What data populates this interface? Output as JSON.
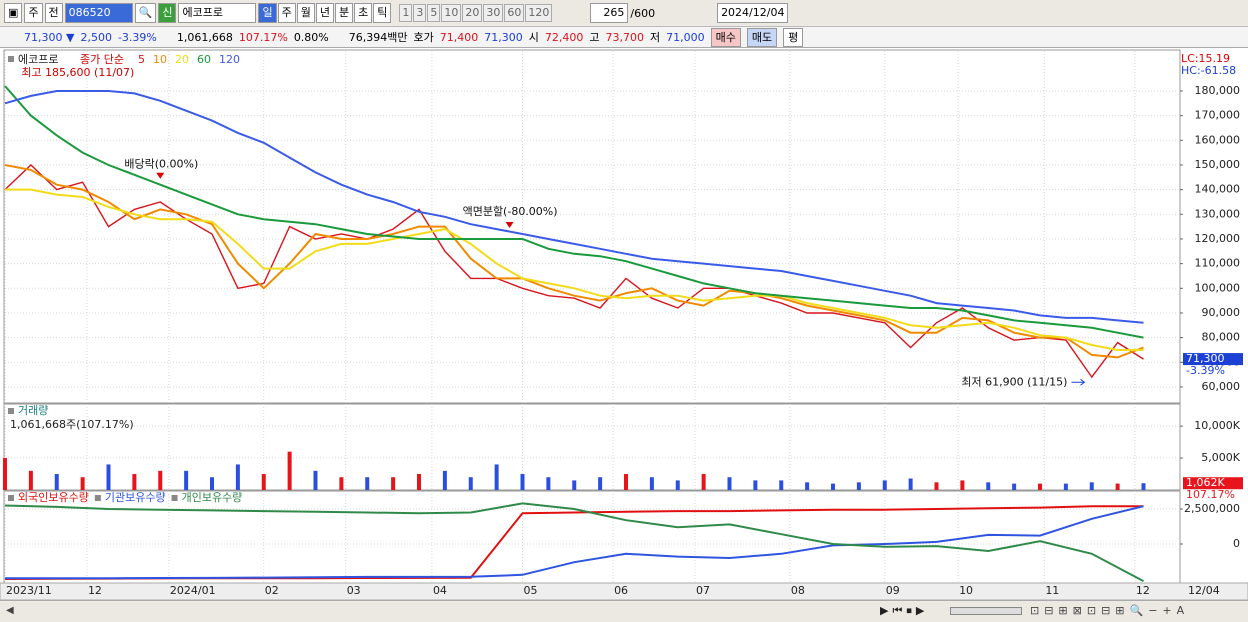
{
  "toolbar": {
    "market": "주",
    "kind": "전",
    "code": "086520",
    "name": "에코프로",
    "periods": [
      "일",
      "주",
      "월",
      "년",
      "분",
      "초",
      "틱"
    ],
    "intervals": [
      "1",
      "3",
      "5",
      "10",
      "20",
      "30",
      "60",
      "120"
    ],
    "count": "265",
    "max": "/600",
    "date": "2024/12/04"
  },
  "info": {
    "fields": [
      "71,300 ▼",
      "2,500",
      "-3.39%",
      "1,061,668",
      "107.17%",
      "0.80%",
      "76,394백만",
      "호가",
      "71,400",
      "71,300",
      "시",
      "72,400",
      "고",
      "73,700",
      "저",
      "71,000"
    ],
    "buttons": [
      "매수",
      "매도",
      "평"
    ]
  },
  "chart_data": [
    {
      "type": "line",
      "stock": "에코프로",
      "legend_title": "종가 단순",
      "lc": "LC:15.19",
      "hc": "HC:-61.58",
      "last_label": "71,300",
      "last_change": "-3.39%",
      "x_end_label": "12/04",
      "xlim": [
        0,
        272
      ],
      "ylim": [
        53900,
        195800
      ],
      "xticks": [
        {
          "value": 0,
          "label": "2023/11"
        },
        {
          "value": 19,
          "label": "12"
        },
        {
          "value": 38,
          "label": "2024/01"
        },
        {
          "value": 60,
          "label": "02"
        },
        {
          "value": 79,
          "label": "03"
        },
        {
          "value": 99,
          "label": "04"
        },
        {
          "value": 120,
          "label": "05"
        },
        {
          "value": 141,
          "label": "06"
        },
        {
          "value": 160,
          "label": "07"
        },
        {
          "value": 182,
          "label": "08"
        },
        {
          "value": 204,
          "label": "09"
        },
        {
          "value": 221,
          "label": "10"
        },
        {
          "value": 241,
          "label": "11"
        },
        {
          "value": 262,
          "label": "12"
        }
      ],
      "yticks": [
        {
          "value": 60000,
          "label": "60,000"
        },
        {
          "value": 70000,
          "label": "70,000"
        },
        {
          "value": 80000,
          "label": "80,000"
        },
        {
          "value": 90000,
          "label": "90,000"
        },
        {
          "value": 100000,
          "label": "100,000"
        },
        {
          "value": 110000,
          "label": "110,000"
        },
        {
          "value": 120000,
          "label": "120,000"
        },
        {
          "value": 130000,
          "label": "130,000"
        },
        {
          "value": 140000,
          "label": "140,000"
        },
        {
          "value": 150000,
          "label": "150,000"
        },
        {
          "value": 160000,
          "label": "160,000"
        },
        {
          "value": 170000,
          "label": "170,000"
        },
        {
          "value": 180000,
          "label": "180,000"
        }
      ],
      "grid": true,
      "x": [
        0,
        6,
        12,
        18,
        24,
        30,
        36,
        42,
        48,
        54,
        60,
        66,
        72,
        78,
        84,
        90,
        96,
        102,
        108,
        114,
        120,
        126,
        132,
        138,
        144,
        150,
        156,
        162,
        168,
        174,
        180,
        186,
        192,
        198,
        204,
        210,
        216,
        222,
        228,
        234,
        240,
        246,
        252,
        258,
        264
      ],
      "series": [
        {
          "name": "5",
          "color": "#d8141c",
          "values": [
            140000,
            150000,
            140000,
            143000,
            125000,
            132000,
            135000,
            128000,
            122000,
            100000,
            102000,
            125000,
            120000,
            122000,
            120000,
            124000,
            132000,
            115000,
            104000,
            104000,
            100000,
            97000,
            96000,
            92000,
            104000,
            96000,
            92000,
            100000,
            100000,
            97000,
            94000,
            90000,
            90000,
            88000,
            86000,
            76000,
            86000,
            92000,
            84000,
            79000,
            80000,
            79000,
            64000,
            78000,
            71300
          ]
        },
        {
          "name": "10",
          "color": "#f08a00",
          "values": [
            150000,
            148000,
            142000,
            140000,
            135000,
            128000,
            132000,
            130000,
            126000,
            110000,
            100000,
            110000,
            122000,
            120000,
            120000,
            122000,
            125000,
            125000,
            112000,
            104000,
            104000,
            100000,
            97000,
            95000,
            98000,
            100000,
            95000,
            93000,
            99000,
            98000,
            96000,
            93000,
            91000,
            89000,
            87000,
            82000,
            82000,
            88000,
            87000,
            82000,
            80000,
            80000,
            73000,
            72000,
            76000
          ]
        },
        {
          "name": "20",
          "color": "#f2dc1a",
          "values": [
            140000,
            140000,
            138000,
            137000,
            133000,
            130000,
            128000,
            128000,
            127000,
            118000,
            108000,
            108000,
            115000,
            118000,
            118000,
            120000,
            122000,
            124000,
            118000,
            110000,
            104000,
            102000,
            100000,
            97000,
            96000,
            97000,
            97000,
            95000,
            96000,
            97000,
            97000,
            94000,
            92000,
            90000,
            88000,
            85000,
            84000,
            85000,
            86000,
            84000,
            81000,
            80000,
            77000,
            75000,
            75000
          ]
        },
        {
          "name": "60",
          "color": "#1a9a3c",
          "values": [
            182000,
            170000,
            162000,
            155000,
            150000,
            146000,
            142000,
            138000,
            134000,
            130000,
            128000,
            127000,
            126000,
            124000,
            122000,
            121000,
            120000,
            120000,
            120000,
            120000,
            120000,
            116000,
            114000,
            113000,
            111000,
            108000,
            105000,
            102000,
            100000,
            98000,
            97000,
            96000,
            95000,
            94000,
            93000,
            92000,
            92000,
            91000,
            89000,
            87000,
            86000,
            85000,
            84000,
            82000,
            80000
          ]
        },
        {
          "name": "120",
          "color": "#3a5be8",
          "values": [
            175000,
            178000,
            180000,
            180000,
            180000,
            179000,
            176000,
            172000,
            168000,
            163000,
            159000,
            153000,
            147000,
            142000,
            138000,
            135000,
            131000,
            129000,
            126000,
            124000,
            122000,
            120000,
            118000,
            116000,
            114000,
            112000,
            111000,
            110000,
            109000,
            108000,
            107000,
            105000,
            103000,
            101000,
            99000,
            97000,
            94000,
            93000,
            92000,
            91000,
            89000,
            88000,
            88000,
            87000,
            86000
          ]
        }
      ],
      "annotations": [
        {
          "text": "최고 185,600 (11/07)",
          "x": 1,
          "y": 185600
        },
        {
          "text": "배당락(0.00%)",
          "x": 36,
          "y": 142000
        },
        {
          "text": "액면분할(-80.00%)",
          "x": 117,
          "y": 122000
        },
        {
          "text": "최저 61,900 (11/15)",
          "x": 251,
          "y": 61900
        }
      ]
    },
    {
      "type": "bar",
      "title": "거래량",
      "subtitle": "1,061,668주(107.17%)",
      "last_label": "1,062K",
      "last_change": "107.17%",
      "xlim": [
        0,
        272
      ],
      "ylim": [
        0,
        13300
      ],
      "yticks": [
        {
          "value": 5000,
          "label": "5,000K"
        },
        {
          "value": 10000,
          "label": "10,000K"
        }
      ],
      "x": [
        0,
        6,
        12,
        18,
        24,
        30,
        36,
        42,
        48,
        54,
        60,
        66,
        72,
        78,
        84,
        90,
        96,
        102,
        108,
        114,
        120,
        126,
        132,
        138,
        144,
        150,
        156,
        162,
        168,
        174,
        180,
        186,
        192,
        198,
        204,
        210,
        216,
        222,
        228,
        234,
        240,
        246,
        252,
        258,
        264
      ],
      "values": [
        5000,
        3000,
        2500,
        2000,
        4000,
        2500,
        3000,
        3000,
        2000,
        4000,
        2500,
        6000,
        3000,
        2000,
        2000,
        2000,
        2500,
        3000,
        2000,
        4000,
        2500,
        2000,
        1500,
        2000,
        2500,
        2000,
        1500,
        2500,
        2000,
        1500,
        1500,
        1200,
        1000,
        1200,
        1500,
        1800,
        1200,
        1500,
        1200,
        1000,
        1000,
        1000,
        1200,
        1000,
        1062
      ],
      "colors": [
        "#e8141c",
        "#e8141c",
        "#2a4fe0",
        "#e8141c",
        "#2a4fe0",
        "#e8141c",
        "#e8141c",
        "#2a4fe0",
        "#2a4fe0",
        "#2a4fe0",
        "#e8141c",
        "#e8141c",
        "#2a4fe0",
        "#e8141c",
        "#2a4fe0",
        "#e8141c",
        "#e8141c",
        "#2a4fe0",
        "#2a4fe0",
        "#2a4fe0",
        "#2a4fe0",
        "#2a4fe0",
        "#2a4fe0",
        "#2a4fe0",
        "#e8141c",
        "#2a4fe0",
        "#2a4fe0",
        "#e8141c",
        "#2a4fe0",
        "#2a4fe0",
        "#2a4fe0",
        "#2a4fe0",
        "#2a4fe0",
        "#2a4fe0",
        "#2a4fe0",
        "#2a4fe0",
        "#e8141c",
        "#e8141c",
        "#2a4fe0",
        "#2a4fe0",
        "#e8141c",
        "#2a4fe0",
        "#2a4fe0",
        "#e8141c",
        "#2a4fe0"
      ]
    },
    {
      "type": "line",
      "xlim": [
        0,
        272
      ],
      "ylim": [
        -2714000,
        3714000
      ],
      "yticks": [
        0,
        {
          "value": 2500000,
          "label": "2,500,000"
        }
      ],
      "x": [
        0,
        12,
        24,
        36,
        48,
        60,
        72,
        84,
        96,
        108,
        120,
        132,
        144,
        156,
        168,
        180,
        192,
        204,
        216,
        228,
        240,
        252,
        264
      ],
      "series": [
        {
          "name": "외국인보유수량",
          "color": "#e01010",
          "values": [
            -2500000,
            -2480000,
            -2470000,
            -2460000,
            -2450000,
            -2450000,
            -2440000,
            -2430000,
            -2420000,
            -2410000,
            2200000,
            2250000,
            2300000,
            2350000,
            2350000,
            2400000,
            2450000,
            2450000,
            2500000,
            2550000,
            2600000,
            2700000,
            2700000
          ]
        },
        {
          "name": "기관보유수량",
          "color": "#2f55e0",
          "values": [
            -2450000,
            -2450000,
            -2440000,
            -2430000,
            -2420000,
            -2400000,
            -2380000,
            -2350000,
            -2350000,
            -2340000,
            -2200000,
            -1300000,
            -700000,
            -900000,
            -1000000,
            -700000,
            -100000,
            0,
            150000,
            650000,
            600000,
            1800000,
            2700000
          ]
        },
        {
          "name": "개인보유수량",
          "color": "#2f8a4a",
          "values": [
            2750000,
            2650000,
            2500000,
            2450000,
            2400000,
            2350000,
            2300000,
            2250000,
            2200000,
            2250000,
            2900000,
            2500000,
            1700000,
            1200000,
            1400000,
            700000,
            0,
            -200000,
            -150000,
            -500000,
            200000,
            -700000,
            -2650000
          ]
        }
      ]
    }
  ]
}
